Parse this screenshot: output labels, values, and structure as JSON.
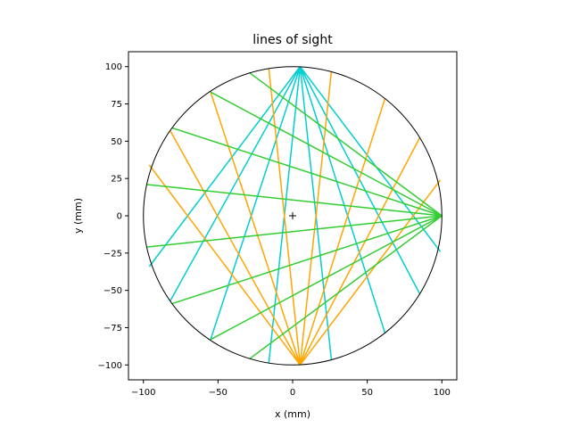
{
  "chart_data": {
    "type": "line",
    "title": "lines of sight",
    "xlabel": "x (mm)",
    "ylabel": "y (mm)",
    "xlim": [
      -110,
      110
    ],
    "ylim": [
      -110,
      110
    ],
    "xticks": [
      -100,
      -50,
      0,
      50,
      100
    ],
    "yticks": [
      -100,
      -75,
      -50,
      -25,
      0,
      25,
      50,
      75,
      100
    ],
    "aspect": "equal",
    "grid": false,
    "legend": "none",
    "boundary": {
      "shape": "circle",
      "center": [
        0,
        0
      ],
      "radius": 100,
      "color": "#000000"
    },
    "center_marker": {
      "x": 0,
      "y": 0,
      "marker": "+",
      "color": "#000000"
    },
    "series": [
      {
        "color": "#00CED1",
        "origin": [
          5,
          100
        ],
        "endpoints": [
          [
            -16,
            -99
          ],
          [
            26,
            -97
          ],
          [
            -55,
            -83
          ],
          [
            62,
            -79
          ],
          [
            -82,
            -57
          ],
          [
            85,
            -52
          ],
          [
            -96,
            -34
          ],
          [
            99,
            -24
          ]
        ]
      },
      {
        "color": "#FFA500",
        "origin": [
          5,
          -100
        ],
        "endpoints": [
          [
            -16,
            99
          ],
          [
            26,
            97
          ],
          [
            -55,
            83
          ],
          [
            62,
            79
          ],
          [
            -82,
            57
          ],
          [
            85,
            52
          ],
          [
            -96,
            34
          ],
          [
            99,
            24
          ]
        ]
      },
      {
        "color": "#32CD32",
        "origin": [
          100,
          0
        ],
        "endpoints": [
          [
            -29,
            96
          ],
          [
            -29,
            -96
          ],
          [
            -55,
            83
          ],
          [
            -55,
            -83
          ],
          [
            -81,
            59
          ],
          [
            -81,
            -59
          ],
          [
            -98,
            21
          ],
          [
            -98,
            -21
          ]
        ]
      }
    ]
  }
}
